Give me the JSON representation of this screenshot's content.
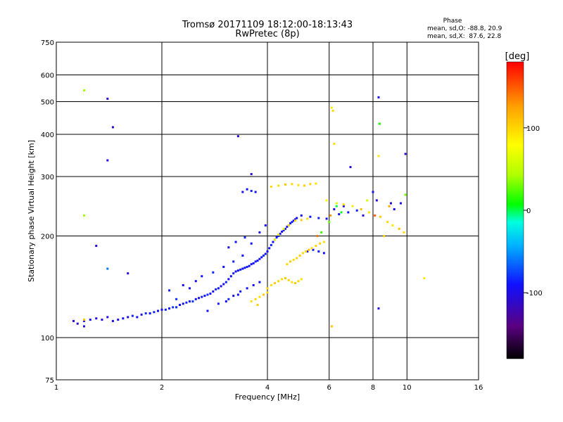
{
  "chart_data": {
    "type": "scatter",
    "title": "Tromsø 20171109 18:12:00-18:13:43",
    "subtitle": "RwPretec (8p)",
    "xlabel": "Frequency [MHz]",
    "ylabel": "Stationary phase Virtual Height [km]",
    "x_scale": "log",
    "y_scale": "log",
    "xlim": [
      1,
      16
    ],
    "ylim": [
      75,
      750
    ],
    "x_ticks": [
      1,
      2,
      4,
      6,
      8,
      10,
      16
    ],
    "y_ticks": [
      75,
      100,
      200,
      300,
      400,
      500,
      600,
      750
    ],
    "grid": true,
    "stats": {
      "heading": "Phase",
      "o_line": "mean, sd,O: -88.8, 20.9",
      "x_line": "mean, sd,X:  87.6, 22.8"
    },
    "colorbar": {
      "label": "[deg]",
      "ticks": [
        100,
        0,
        -100
      ],
      "range": [
        -180,
        180
      ],
      "colors": [
        "#000000",
        "#5a0080",
        "#1010ff",
        "#00b0ff",
        "#00ffe0",
        "#00ff00",
        "#b0ff00",
        "#ffff00",
        "#ffa000",
        "#ff0000"
      ]
    },
    "series": [
      {
        "points": [
          [
            1.12,
            112,
            -105
          ],
          [
            1.15,
            110,
            -110
          ],
          [
            1.2,
            112,
            -100
          ],
          [
            1.25,
            113,
            -95
          ],
          [
            1.3,
            114,
            -100
          ],
          [
            1.35,
            113,
            -105
          ],
          [
            1.4,
            115,
            -100
          ],
          [
            1.45,
            112,
            -95
          ],
          [
            1.5,
            113,
            -100
          ],
          [
            1.55,
            114,
            -90
          ],
          [
            1.6,
            115,
            -100
          ],
          [
            1.65,
            116,
            -85
          ],
          [
            1.7,
            115,
            -90
          ],
          [
            1.75,
            117,
            -95
          ],
          [
            1.8,
            118,
            -80
          ],
          [
            1.85,
            118,
            -90
          ],
          [
            1.9,
            119,
            -85
          ],
          [
            1.95,
            120,
            -90
          ],
          [
            2.0,
            121,
            -95
          ],
          [
            2.05,
            121,
            -85
          ],
          [
            2.1,
            122,
            -90
          ],
          [
            2.15,
            123,
            -80
          ],
          [
            2.2,
            123,
            -85
          ],
          [
            2.25,
            125,
            -90
          ],
          [
            2.3,
            126,
            -95
          ],
          [
            2.35,
            127,
            -85
          ],
          [
            2.4,
            128,
            -90
          ],
          [
            2.45,
            128,
            -80
          ],
          [
            2.5,
            130,
            -90
          ],
          [
            2.55,
            131,
            -95
          ],
          [
            2.6,
            132,
            -85
          ],
          [
            2.65,
            133,
            -90
          ],
          [
            2.7,
            134,
            -80
          ],
          [
            2.75,
            135,
            -90
          ],
          [
            2.8,
            137,
            -95
          ],
          [
            2.85,
            139,
            -85
          ],
          [
            2.9,
            140,
            -90
          ],
          [
            2.95,
            142,
            -95
          ],
          [
            3.0,
            144,
            -90
          ],
          [
            3.05,
            146,
            -85
          ],
          [
            3.1,
            149,
            -95
          ],
          [
            3.15,
            152,
            -90
          ],
          [
            3.2,
            155,
            -85
          ],
          [
            3.25,
            157,
            -95
          ],
          [
            3.3,
            158,
            -90
          ],
          [
            3.35,
            159,
            -85
          ],
          [
            3.4,
            160,
            -90
          ],
          [
            3.45,
            161,
            -95
          ],
          [
            3.5,
            162,
            -85
          ],
          [
            3.55,
            163,
            -90
          ],
          [
            3.6,
            165,
            -95
          ],
          [
            3.65,
            166,
            -90
          ],
          [
            3.7,
            168,
            -85
          ],
          [
            3.75,
            169,
            -90
          ],
          [
            3.8,
            171,
            -95
          ],
          [
            3.85,
            173,
            -90
          ],
          [
            3.9,
            175,
            -85
          ],
          [
            3.95,
            177,
            -90
          ],
          [
            4.0,
            180,
            -95
          ],
          [
            4.05,
            184,
            -90
          ],
          [
            4.1,
            188,
            -85
          ],
          [
            4.15,
            192,
            -90
          ],
          [
            4.2,
            195,
            -95
          ],
          [
            4.25,
            198,
            -90
          ],
          [
            4.3,
            200,
            -85
          ],
          [
            4.35,
            203,
            -90
          ],
          [
            4.4,
            206,
            -95
          ],
          [
            4.45,
            208,
            -90
          ],
          [
            4.5,
            210,
            -85
          ],
          [
            4.55,
            213,
            -90
          ],
          [
            4.6,
            215,
            -95
          ],
          [
            4.65,
            218,
            -90
          ],
          [
            4.7,
            220,
            -85
          ],
          [
            4.75,
            222,
            -90
          ],
          [
            4.8,
            224,
            -95
          ],
          [
            4.85,
            226,
            -90
          ],
          [
            5.2,
            180,
            -95
          ],
          [
            5.4,
            182,
            -90
          ],
          [
            5.6,
            180,
            -85
          ],
          [
            5.8,
            178,
            -90
          ],
          [
            3.05,
            128,
            -90
          ],
          [
            3.2,
            133,
            -95
          ],
          [
            3.35,
            137,
            -85
          ],
          [
            3.5,
            140,
            -90
          ],
          [
            3.65,
            143,
            -95
          ],
          [
            3.8,
            146,
            -90
          ],
          [
            2.9,
            126,
            -85
          ],
          [
            3.1,
            130,
            -80
          ],
          [
            3.3,
            134,
            -95
          ],
          [
            2.7,
            120,
            -90
          ],
          [
            3.4,
            270,
            -95
          ],
          [
            3.5,
            275,
            -90
          ],
          [
            3.6,
            272,
            -85
          ],
          [
            3.7,
            270,
            -90
          ],
          [
            5.0,
            230,
            -95
          ],
          [
            5.3,
            228,
            -90
          ],
          [
            5.6,
            226,
            -85
          ],
          [
            5.9,
            225,
            -90
          ],
          [
            6.4,
            232,
            -95
          ],
          [
            6.8,
            235,
            -90
          ],
          [
            7.2,
            238,
            -85
          ],
          [
            7.5,
            230,
            -100
          ],
          [
            6.9,
            320,
            -110
          ],
          [
            8.0,
            270,
            -95
          ],
          [
            8.2,
            255,
            -100
          ],
          [
            9.0,
            250,
            -105
          ],
          [
            9.6,
            250,
            -90
          ],
          [
            9.2,
            240,
            -95
          ],
          [
            6.2,
            240,
            -100
          ],
          [
            6.6,
            245,
            -105
          ],
          [
            1.4,
            510,
            -110
          ],
          [
            1.45,
            420,
            -105
          ],
          [
            1.4,
            335,
            -100
          ],
          [
            1.3,
            187,
            -100
          ],
          [
            3.3,
            395,
            -105
          ],
          [
            3.6,
            305,
            -100
          ],
          [
            8.3,
            515,
            -95
          ],
          [
            9.9,
            350,
            -110
          ],
          [
            1.6,
            155,
            -105
          ],
          [
            8.3,
            122,
            -100
          ],
          [
            1.4,
            160,
            -60
          ],
          [
            1.2,
            108,
            -100
          ],
          [
            2.1,
            138,
            -85
          ],
          [
            2.3,
            143,
            -90
          ],
          [
            2.5,
            147,
            -95
          ],
          [
            2.2,
            130,
            -80
          ],
          [
            2.6,
            152,
            -90
          ],
          [
            2.8,
            156,
            -85
          ],
          [
            2.4,
            140,
            -95
          ],
          [
            3.0,
            162,
            -90
          ],
          [
            3.2,
            168,
            -85
          ],
          [
            3.4,
            175,
            -90
          ],
          [
            3.1,
            185,
            -95
          ],
          [
            3.25,
            192,
            -90
          ],
          [
            3.45,
            198,
            -85
          ],
          [
            3.6,
            190,
            -90
          ],
          [
            3.8,
            205,
            -95
          ],
          [
            3.95,
            215,
            -90
          ]
        ]
      },
      {
        "points": [
          [
            4.0,
            140,
            100
          ],
          [
            4.1,
            143,
            95
          ],
          [
            4.2,
            145,
            105
          ],
          [
            4.3,
            147,
            100
          ],
          [
            4.4,
            149,
            95
          ],
          [
            4.5,
            150,
            105
          ],
          [
            4.6,
            148,
            100
          ],
          [
            4.7,
            146,
            95
          ],
          [
            4.8,
            145,
            105
          ],
          [
            4.9,
            147,
            100
          ],
          [
            5.0,
            149,
            95
          ],
          [
            4.55,
            165,
            100
          ],
          [
            4.65,
            168,
            105
          ],
          [
            4.75,
            170,
            95
          ],
          [
            4.85,
            172,
            100
          ],
          [
            4.95,
            175,
            105
          ],
          [
            5.05,
            178,
            95
          ],
          [
            5.15,
            180,
            100
          ],
          [
            5.25,
            182,
            105
          ],
          [
            5.35,
            184,
            95
          ],
          [
            5.5,
            187,
            100
          ],
          [
            5.65,
            190,
            105
          ],
          [
            5.8,
            192,
            95
          ],
          [
            3.7,
            130,
            100
          ],
          [
            3.8,
            132,
            95
          ],
          [
            3.9,
            134,
            105
          ],
          [
            4.0,
            136,
            100
          ],
          [
            3.6,
            128,
            95
          ],
          [
            3.75,
            125,
            105
          ],
          [
            4.1,
            280,
            100
          ],
          [
            4.3,
            282,
            95
          ],
          [
            4.5,
            284,
            105
          ],
          [
            4.7,
            285,
            100
          ],
          [
            4.9,
            283,
            95
          ],
          [
            5.1,
            282,
            105
          ],
          [
            5.3,
            285,
            100
          ],
          [
            5.5,
            286,
            95
          ],
          [
            4.8,
            222,
            100
          ],
          [
            5.0,
            223,
            105
          ],
          [
            5.2,
            225,
            95
          ],
          [
            6.1,
            480,
            90
          ],
          [
            6.15,
            470,
            100
          ],
          [
            6.2,
            375,
            95
          ],
          [
            6.1,
            108,
            110
          ],
          [
            5.9,
            255,
            80
          ],
          [
            6.3,
            250,
            60
          ],
          [
            6.6,
            248,
            100
          ],
          [
            7.0,
            245,
            90
          ],
          [
            7.4,
            240,
            110
          ],
          [
            7.8,
            235,
            95
          ],
          [
            8.4,
            228,
            105
          ],
          [
            8.8,
            220,
            100
          ],
          [
            9.1,
            215,
            90
          ],
          [
            9.5,
            210,
            110
          ],
          [
            9.8,
            205,
            95
          ],
          [
            8.6,
            200,
            100
          ],
          [
            11.2,
            150,
            90
          ],
          [
            1.2,
            540,
            40
          ],
          [
            1.2,
            230,
            40
          ],
          [
            8.3,
            345,
            90
          ],
          [
            8.35,
            430,
            10
          ],
          [
            1.2,
            113,
            110
          ],
          [
            9.9,
            265,
            30
          ],
          [
            7.7,
            255,
            60
          ],
          [
            4.3,
            202,
            90
          ],
          [
            4.45,
            210,
            80
          ],
          [
            4.6,
            215,
            100
          ],
          [
            4.2,
            195,
            70
          ],
          [
            6.5,
            235,
            5
          ],
          [
            6.0,
            220,
            30
          ],
          [
            5.7,
            205,
            20
          ],
          [
            6.3,
            245,
            0
          ],
          [
            8.1,
            230,
            150
          ],
          [
            8.9,
            245,
            120
          ],
          [
            5.55,
            200,
            140
          ],
          [
            6.05,
            230,
            130
          ]
        ]
      }
    ]
  }
}
